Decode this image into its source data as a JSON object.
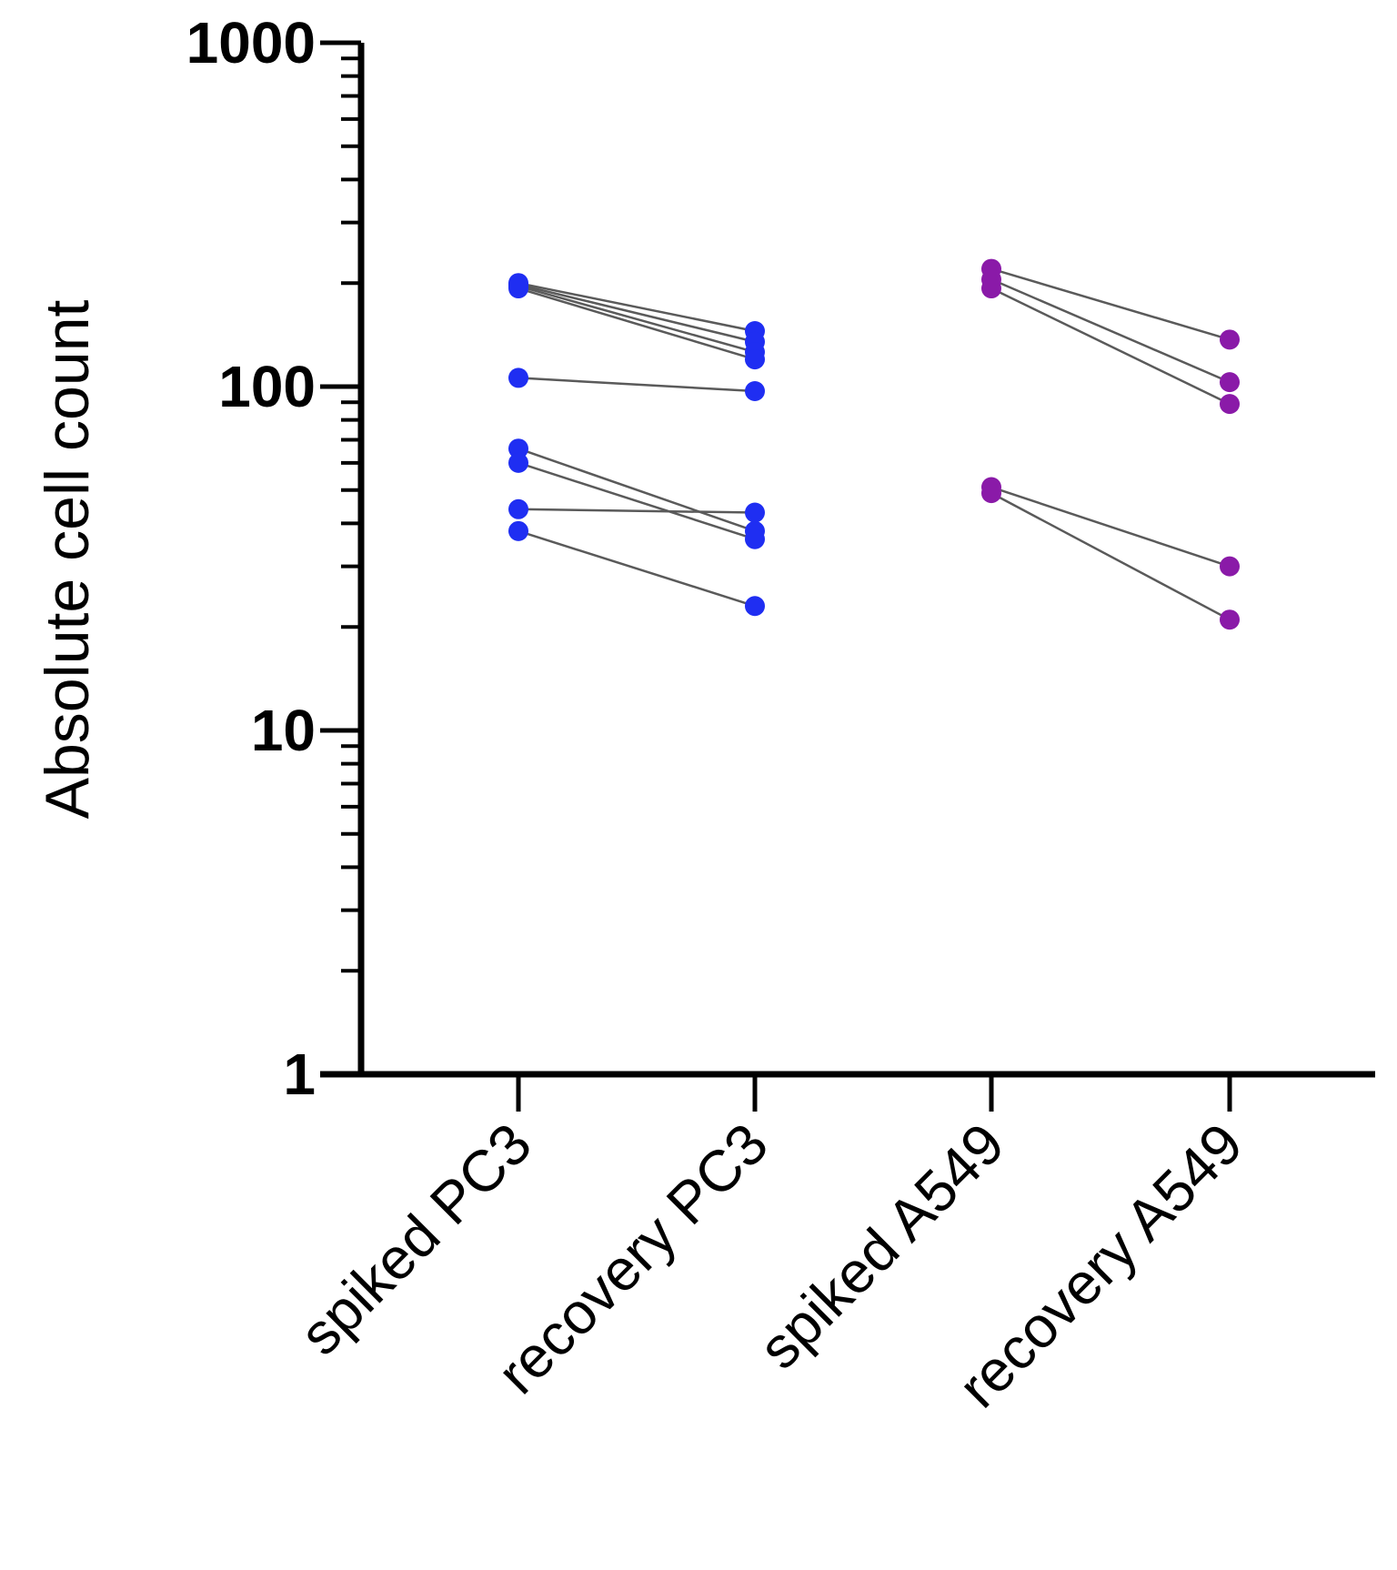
{
  "chart_data": {
    "type": "scatter",
    "subtype": "paired dot plot",
    "title": "",
    "ylabel": "Absolute cell count",
    "xlabel": "",
    "yscale": "log",
    "ylim": [
      1,
      1000
    ],
    "yticks": [
      {
        "value": 1,
        "label": "1"
      },
      {
        "value": 10,
        "label": "10"
      },
      {
        "value": 100,
        "label": "100"
      },
      {
        "value": 1000,
        "label": "1000"
      }
    ],
    "categories": [
      "spiked PC3",
      "recovery PC3",
      "spiked A549",
      "recovery A549"
    ],
    "groups": [
      {
        "name": "PC3",
        "color": "#1f2ef2",
        "from_category": "spiked PC3",
        "to_category": "recovery PC3",
        "pairs": [
          {
            "spiked": 200,
            "recovery": 145
          },
          {
            "spiked": 198,
            "recovery": 135
          },
          {
            "spiked": 196,
            "recovery": 126
          },
          {
            "spiked": 193,
            "recovery": 120
          },
          {
            "spiked": 106,
            "recovery": 97
          },
          {
            "spiked": 66,
            "recovery": 38
          },
          {
            "spiked": 60,
            "recovery": 36
          },
          {
            "spiked": 44,
            "recovery": 43
          },
          {
            "spiked": 38,
            "recovery": 23
          }
        ]
      },
      {
        "name": "A549",
        "color": "#8a1aa8",
        "from_category": "spiked A549",
        "to_category": "recovery A549",
        "pairs": [
          {
            "spiked": 220,
            "recovery": 137
          },
          {
            "spiked": 205,
            "recovery": 103
          },
          {
            "spiked": 193,
            "recovery": 89
          },
          {
            "spiked": 51,
            "recovery": 30
          },
          {
            "spiked": 49,
            "recovery": 21
          }
        ]
      }
    ],
    "grid": false,
    "legend": "none"
  }
}
